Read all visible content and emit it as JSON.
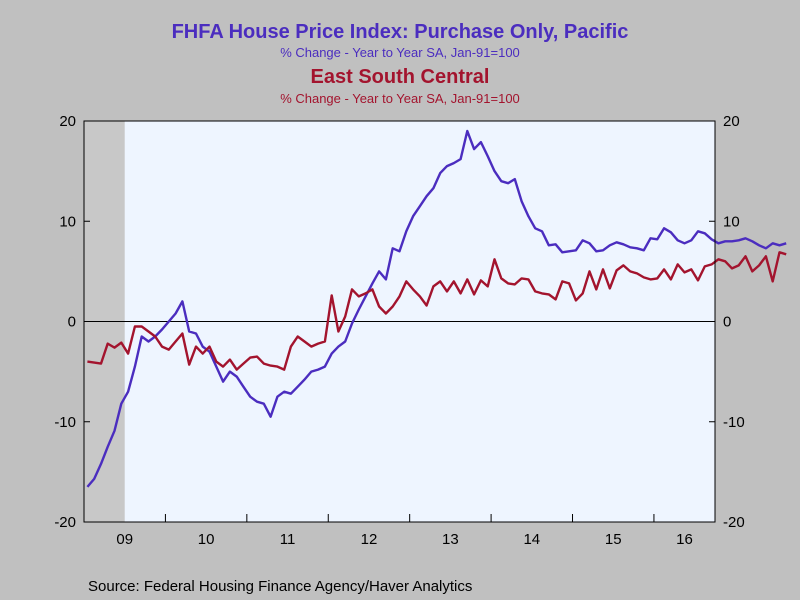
{
  "titles": {
    "series1_title": "FHFA House Price Index: Purchase Only, Pacific",
    "series1_subtitle": "% Change - Year to Year    SA, Jan-91=100",
    "series2_title": "East South Central",
    "series2_subtitle": "% Change - Year to Year    SA, Jan-91=100"
  },
  "source": "Source:  Federal Housing Finance Agency/Haver Analytics",
  "colors": {
    "background": "#c0c0c0",
    "plot_background": "#eef5ff",
    "pacific": "#4b2dbf",
    "east_south_central": "#a3142e",
    "recession_shade": "#c8c8c8"
  },
  "chart_data": {
    "type": "line",
    "frequency": "monthly",
    "x_start": "2009-01",
    "x_end": "2016-09",
    "x_tick_labels": [
      "09",
      "10",
      "11",
      "12",
      "13",
      "14",
      "15",
      "16"
    ],
    "ylim": [
      -20,
      20
    ],
    "y_ticks": [
      -20,
      -10,
      0,
      10,
      20
    ],
    "y_tick_labels": [
      "-20",
      "-10",
      "0",
      "10",
      "20"
    ],
    "zero_line": true,
    "grid": false,
    "recession_shading": {
      "start": "2009-01",
      "end": "2009-06"
    },
    "series": [
      {
        "name": "Pacific",
        "color_key": "pacific",
        "values": [
          -16.5,
          -15.7,
          -14.2,
          -12.5,
          -10.9,
          -8.2,
          -7.0,
          -4.5,
          -1.5,
          -2.0,
          -1.5,
          -0.8,
          0.0,
          0.8,
          2.0,
          -1.0,
          -1.2,
          -2.5,
          -3.0,
          -4.5,
          -6.0,
          -5.0,
          -5.5,
          -6.5,
          -7.5,
          -8.0,
          -8.2,
          -9.5,
          -7.5,
          -7.0,
          -7.2,
          -6.5,
          -5.8,
          -5.0,
          -4.8,
          -4.5,
          -3.2,
          -2.5,
          -2.0,
          -0.2,
          1.2,
          2.5,
          3.8,
          5.0,
          4.2,
          7.3,
          7.0,
          9.0,
          10.5,
          11.5,
          12.5,
          13.3,
          14.8,
          15.5,
          15.8,
          16.2,
          19.0,
          17.2,
          17.9,
          16.5,
          15.0,
          14.0,
          13.8,
          14.2,
          12.0,
          10.5,
          9.3,
          9.0,
          7.6,
          7.7,
          6.9,
          7.0,
          7.1,
          8.1,
          7.8,
          7.0,
          7.1,
          7.6,
          7.9,
          7.7,
          7.4,
          7.3,
          7.1,
          8.3,
          8.2,
          9.3,
          8.9,
          8.1,
          7.8,
          8.1,
          9.0,
          8.8,
          8.2,
          7.8,
          8.0,
          8.0,
          8.1,
          8.3,
          8.0,
          7.6,
          7.3,
          7.8,
          7.6,
          7.8
        ]
      },
      {
        "name": "East South Central",
        "color_key": "east_south_central",
        "values": [
          -4.0,
          -4.1,
          -4.2,
          -2.2,
          -2.6,
          -2.1,
          -3.2,
          -0.5,
          -0.5,
          -1.0,
          -1.5,
          -2.5,
          -2.8,
          -2.0,
          -1.2,
          -4.3,
          -2.5,
          -3.2,
          -2.5,
          -4.0,
          -4.5,
          -3.8,
          -4.8,
          -4.2,
          -3.6,
          -3.5,
          -4.2,
          -4.4,
          -4.5,
          -4.8,
          -2.5,
          -1.5,
          -2.0,
          -2.5,
          -2.2,
          -2.0,
          2.6,
          -1.0,
          0.5,
          3.2,
          2.5,
          2.8,
          3.2,
          1.5,
          0.8,
          1.5,
          2.5,
          4.0,
          3.2,
          2.5,
          1.6,
          3.5,
          4.0,
          3.0,
          4.0,
          2.8,
          4.2,
          2.7,
          4.1,
          3.5,
          6.2,
          4.3,
          3.8,
          3.7,
          4.3,
          4.2,
          3.0,
          2.8,
          2.7,
          2.2,
          4.0,
          3.8,
          2.1,
          2.8,
          5.0,
          3.2,
          5.2,
          3.3,
          5.1,
          5.6,
          5.0,
          4.8,
          4.4,
          4.2,
          4.3,
          5.2,
          4.2,
          5.7,
          4.9,
          5.2,
          4.1,
          5.5,
          5.7,
          6.2,
          6.0,
          5.3,
          5.6,
          6.5,
          5.0,
          5.6,
          6.5,
          4.0,
          6.9,
          6.7
        ]
      }
    ]
  }
}
